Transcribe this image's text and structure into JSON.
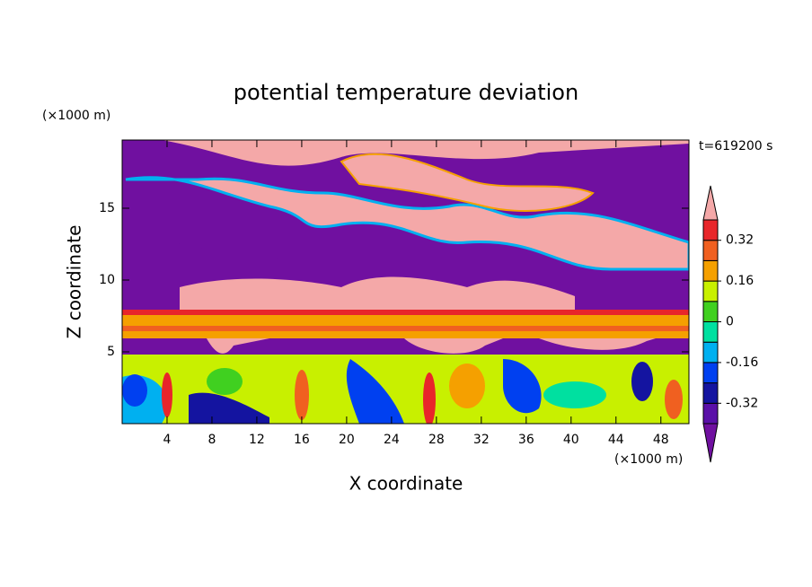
{
  "chart_data": {
    "type": "contour",
    "title": "potential temperature deviation",
    "xlabel": "X coordinate",
    "ylabel": "Z coordinate",
    "x_unit": "(×1000 m)",
    "y_unit": "(×1000 m)",
    "annotation": "t=619200 s",
    "xlim": [
      0,
      50.5
    ],
    "ylim": [
      0,
      19.75
    ],
    "xticks": [
      4,
      8,
      12,
      16,
      20,
      24,
      28,
      32,
      36,
      40,
      44,
      48
    ],
    "yticks": [
      5,
      10,
      15
    ],
    "colorbar": {
      "levels": [
        -0.4,
        -0.32,
        -0.24,
        -0.16,
        -0.08,
        0,
        0.08,
        0.16,
        0.24,
        0.32,
        0.4
      ],
      "colors": [
        "#7010a0",
        "#5a10a8",
        "#1414a0",
        "#0040f0",
        "#00b0f0",
        "#00e0a0",
        "#40d020",
        "#c8f000",
        "#f5a000",
        "#f06020",
        "#e8262a",
        "#f4a8a8"
      ],
      "ticks": [
        -0.32,
        -0.16,
        0,
        0.16,
        0.32
      ]
    }
  }
}
